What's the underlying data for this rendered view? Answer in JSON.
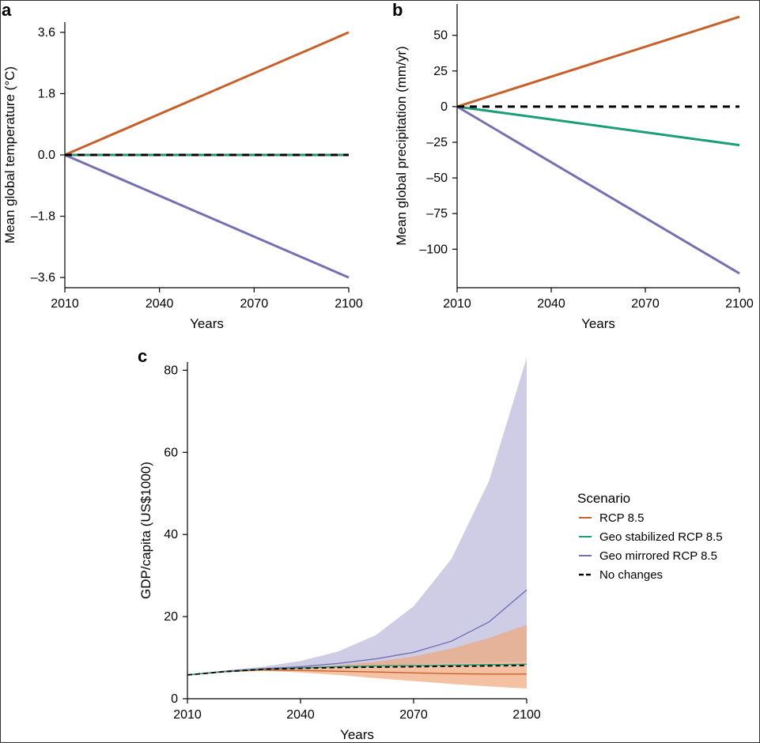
{
  "colors": {
    "rcp85": "#c8602a",
    "geo_stabilized": "#1b9e77",
    "geo_mirrored": "#7570b3",
    "no_changes": "#000000",
    "band_mirrored": "#c5c4e0",
    "band_rcp85": "#f0a77a"
  },
  "chart_data": [
    {
      "panel": "a",
      "type": "line",
      "xlabel": "Years",
      "ylabel": "Mean global temperature (°C)",
      "xlim": [
        2010,
        2100
      ],
      "ylim": [
        -3.9,
        3.9
      ],
      "x_ticks": [
        "2010",
        "2040",
        "2070",
        "2100"
      ],
      "y_ticks": [
        "3.6",
        "1.8",
        "0.0",
        "–1.8",
        "–3.6"
      ],
      "y_tick_values": [
        3.6,
        1.8,
        0.0,
        -1.8,
        -3.6
      ],
      "x": [
        2010,
        2100
      ],
      "series": [
        {
          "key": "rcp85",
          "values": [
            0,
            3.6
          ]
        },
        {
          "key": "geo_stabilized",
          "values": [
            0,
            0
          ]
        },
        {
          "key": "geo_mirrored",
          "values": [
            0,
            -3.6
          ]
        },
        {
          "key": "no_changes",
          "values": [
            0,
            0
          ],
          "dashed": true
        }
      ]
    },
    {
      "panel": "b",
      "type": "line",
      "xlabel": "Years",
      "ylabel": "Mean global precipitation (mm/yr)",
      "xlim": [
        2010,
        2100
      ],
      "ylim": [
        -127,
        72
      ],
      "x_ticks": [
        "2010",
        "2040",
        "2070",
        "2100"
      ],
      "y_ticks": [
        "50",
        "25",
        "0",
        "–25",
        "–50",
        "–75",
        "–100"
      ],
      "y_tick_values": [
        50,
        25,
        0,
        -25,
        -50,
        -75,
        -100
      ],
      "x": [
        2010,
        2100
      ],
      "series": [
        {
          "key": "rcp85",
          "values": [
            0,
            63
          ]
        },
        {
          "key": "geo_stabilized",
          "values": [
            0,
            -27
          ]
        },
        {
          "key": "geo_mirrored",
          "values": [
            0,
            -117
          ]
        },
        {
          "key": "no_changes",
          "values": [
            0,
            0
          ],
          "dashed": true
        }
      ]
    },
    {
      "panel": "c",
      "type": "area",
      "xlabel": "Years",
      "ylabel": "GDP/capita (US$1000)",
      "xlim": [
        2010,
        2100
      ],
      "ylim": [
        0,
        82
      ],
      "x_ticks": [
        "2010",
        "2040",
        "2070",
        "2100"
      ],
      "y_ticks": [
        "0",
        "20",
        "40",
        "60",
        "80"
      ],
      "y_tick_values": [
        0,
        20,
        40,
        60,
        80
      ],
      "x": [
        2010,
        2020,
        2030,
        2040,
        2050,
        2060,
        2070,
        2080,
        2090,
        2100
      ],
      "bands": [
        {
          "key": "geo_mirrored",
          "lower": [
            5.8,
            6.6,
            7.2,
            7.5,
            7.8,
            8.1,
            8.4,
            8.6,
            8.8,
            9.0
          ],
          "upper": [
            5.8,
            6.9,
            7.8,
            9.2,
            11.5,
            15.5,
            22.5,
            34.0,
            53.0,
            83.0
          ]
        },
        {
          "key": "rcp85",
          "lower": [
            5.8,
            6.4,
            6.8,
            6.4,
            5.8,
            5.0,
            4.3,
            3.6,
            3.0,
            2.5
          ],
          "upper": [
            5.8,
            6.6,
            7.2,
            7.6,
            8.2,
            9.0,
            10.3,
            12.2,
            14.8,
            18.0
          ]
        }
      ],
      "series": [
        {
          "key": "geo_mirrored",
          "values": [
            5.8,
            6.7,
            7.3,
            7.8,
            8.6,
            9.7,
            11.3,
            14.0,
            18.7,
            26.5
          ]
        },
        {
          "key": "rcp85",
          "values": [
            5.8,
            6.6,
            7.0,
            6.9,
            6.7,
            6.5,
            6.3,
            6.1,
            6.0,
            6.0
          ]
        },
        {
          "key": "geo_stabilized",
          "values": [
            5.8,
            6.6,
            7.2,
            7.5,
            7.8,
            8.0,
            8.1,
            8.2,
            8.3,
            8.4
          ]
        },
        {
          "key": "no_changes",
          "values": [
            5.8,
            6.6,
            7.2,
            7.4,
            7.6,
            7.7,
            7.8,
            7.9,
            8.0,
            8.1
          ],
          "dashed": true
        }
      ]
    }
  ],
  "legend": {
    "title": "Scenario",
    "items": [
      {
        "key": "rcp85",
        "label": "RCP 8.5"
      },
      {
        "key": "geo_stabilized",
        "label": "Geo stabilized RCP 8.5"
      },
      {
        "key": "geo_mirrored",
        "label": "Geo mirrored RCP 8.5"
      },
      {
        "key": "no_changes",
        "label": "No changes",
        "dashed": true
      }
    ]
  }
}
